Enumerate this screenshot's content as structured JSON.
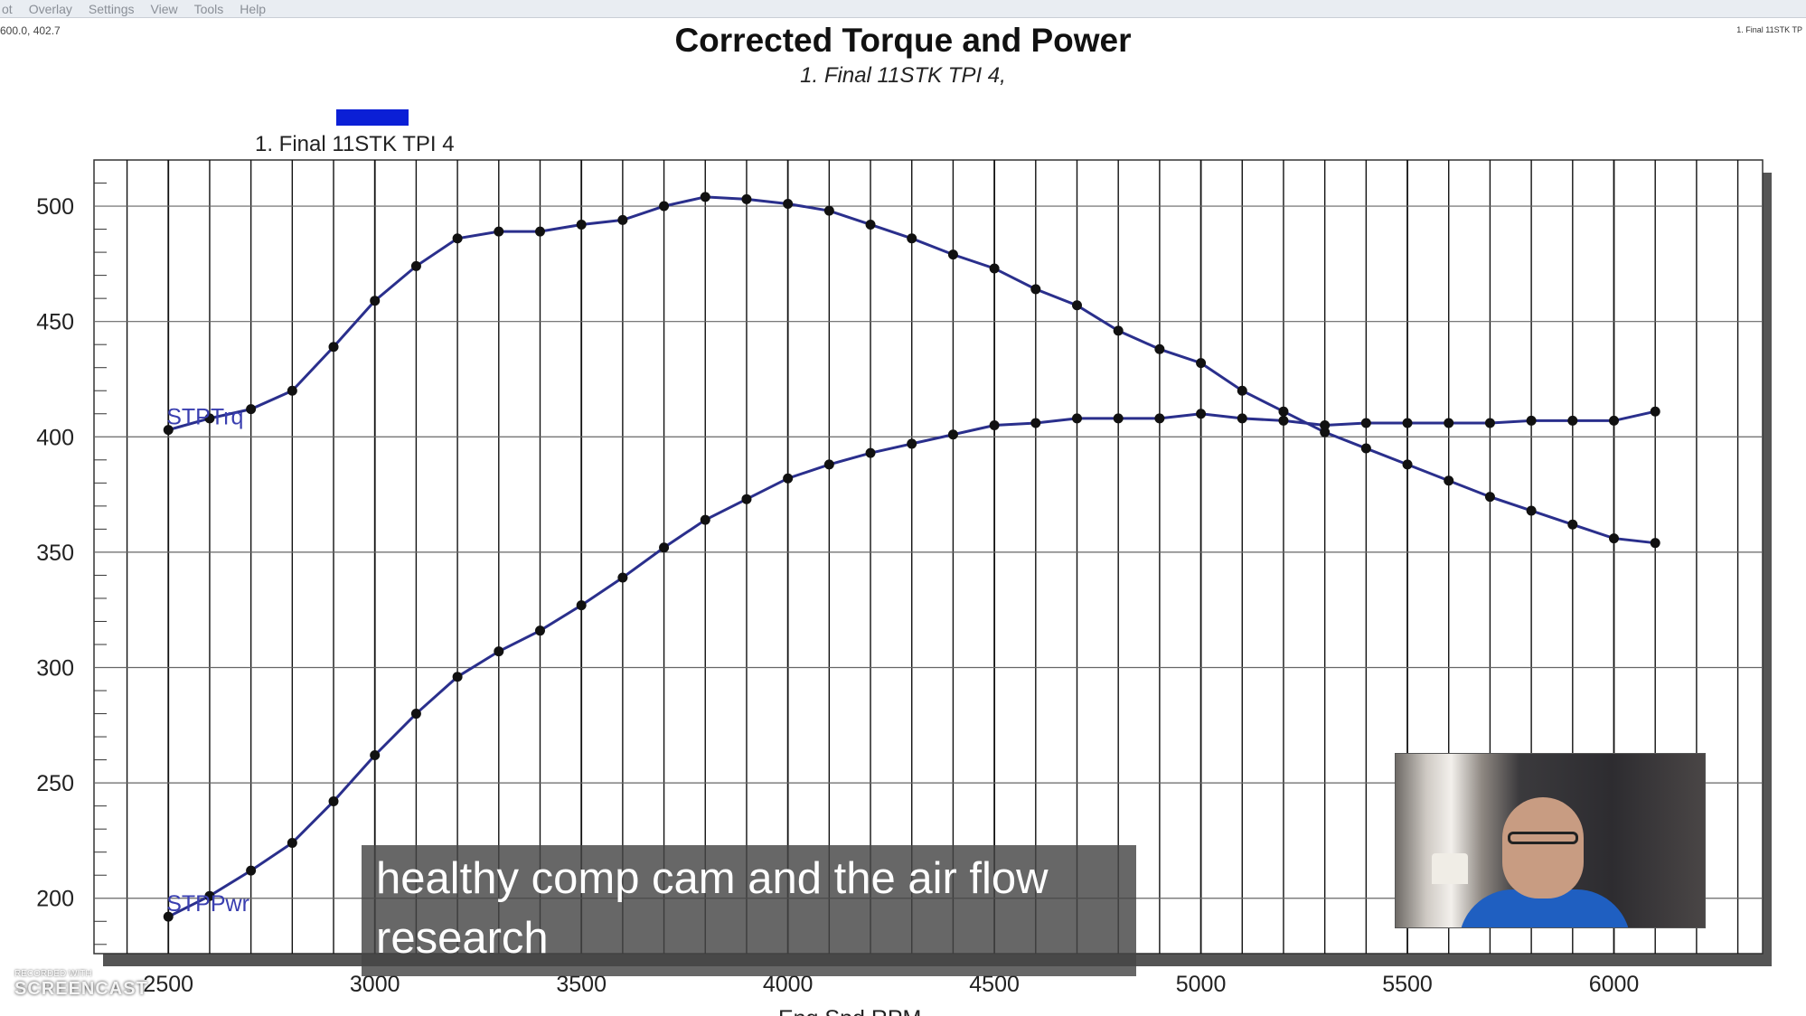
{
  "menu": {
    "items": [
      "ot",
      "Overlay",
      "Settings",
      "View",
      "Tools",
      "Help"
    ]
  },
  "coord_readout": "600.0, 402.7",
  "top_right_legend": "1. Final 11STK TP",
  "legend_entry": "1. Final 11STK TPI 4",
  "caption": {
    "line1": "healthy comp cam and the air flow",
    "line2": "research"
  },
  "watermark": {
    "small": "RECORDED WITH",
    "brand": "SCREENCAST"
  },
  "chart_data": {
    "type": "line",
    "title": "Corrected Torque and Power",
    "subtitle": "1. Final 11STK TPI 4,",
    "xlabel": "Eng Spd RPM",
    "ylabel": "",
    "xlim": [
      2500,
      6300
    ],
    "ylim": [
      180,
      520
    ],
    "x_ticks": [
      2500,
      3000,
      3500,
      4000,
      4500,
      5000,
      5500,
      6000
    ],
    "x_tick_labels": [
      "2500",
      "3000",
      "3500",
      "4000",
      "4500",
      "5000",
      "5500",
      "6000"
    ],
    "y_ticks": [
      200,
      250,
      300,
      350,
      400,
      450,
      500
    ],
    "y_tick_labels": [
      "200",
      "250",
      "300",
      "350",
      "400",
      "450",
      "500"
    ],
    "grid": true,
    "legend": "top-left",
    "series_color": "#2a2f8c",
    "x": [
      2500,
      2600,
      2700,
      2800,
      2900,
      3000,
      3100,
      3200,
      3300,
      3400,
      3500,
      3600,
      3700,
      3800,
      3900,
      4000,
      4100,
      4200,
      4300,
      4400,
      4500,
      4600,
      4700,
      4800,
      4900,
      5000,
      5100,
      5200,
      5300,
      5400,
      5500,
      5600,
      5700,
      5800,
      5900,
      6000,
      6100
    ],
    "series": [
      {
        "name": "STPTrq",
        "values": [
          403,
          408,
          412,
          420,
          439,
          459,
          474,
          486,
          489,
          489,
          492,
          494,
          500,
          504,
          503,
          501,
          498,
          492,
          486,
          479,
          473,
          464,
          457,
          446,
          438,
          432,
          420,
          411,
          402,
          395,
          388,
          381,
          374,
          368,
          362,
          356,
          354
        ]
      },
      {
        "name": "STPPwr",
        "values": [
          192,
          201,
          212,
          224,
          242,
          262,
          280,
          296,
          307,
          316,
          327,
          339,
          352,
          364,
          373,
          382,
          388,
          393,
          397,
          401,
          405,
          406,
          408,
          408,
          408,
          410,
          408,
          407,
          405,
          406,
          406,
          406,
          406,
          407,
          407,
          407,
          411
        ]
      }
    ]
  }
}
